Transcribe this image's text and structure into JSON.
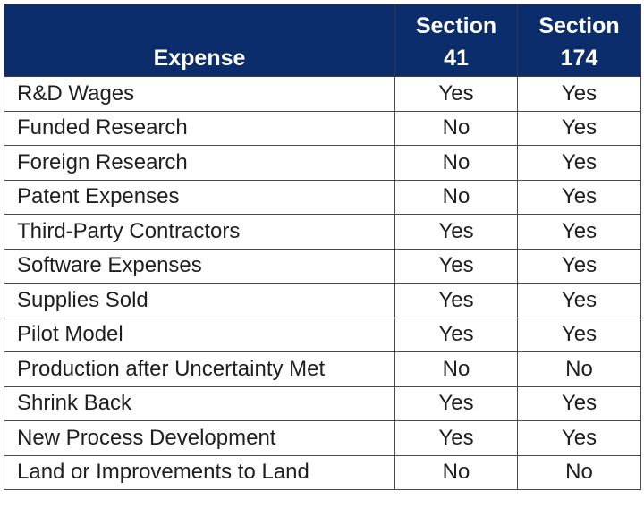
{
  "table": {
    "headers": {
      "expense": "Expense",
      "section41": [
        "Section",
        "41"
      ],
      "section174": [
        "Section",
        "174"
      ]
    },
    "header_color": "#0b2d6b",
    "rows": [
      {
        "expense": "R&D Wages",
        "section41": "Yes",
        "section174": "Yes"
      },
      {
        "expense": "Funded Research",
        "section41": "No",
        "section174": "Yes"
      },
      {
        "expense": "Foreign Research",
        "section41": "No",
        "section174": "Yes"
      },
      {
        "expense": "Patent Expenses",
        "section41": "No",
        "section174": "Yes"
      },
      {
        "expense": "Third-Party Contractors",
        "section41": "Yes",
        "section174": "Yes"
      },
      {
        "expense": "Software Expenses",
        "section41": "Yes",
        "section174": "Yes"
      },
      {
        "expense": "Supplies Sold",
        "section41": "Yes",
        "section174": "Yes"
      },
      {
        "expense": "Pilot Model",
        "section41": "Yes",
        "section174": "Yes"
      },
      {
        "expense": "Production after Uncertainty Met",
        "section41": "No",
        "section174": "No"
      },
      {
        "expense": "Shrink Back",
        "section41": "Yes",
        "section174": "Yes"
      },
      {
        "expense": "New Process Development",
        "section41": "Yes",
        "section174": "Yes"
      },
      {
        "expense": "Land or Improvements to Land",
        "section41": "No",
        "section174": "No"
      }
    ]
  }
}
